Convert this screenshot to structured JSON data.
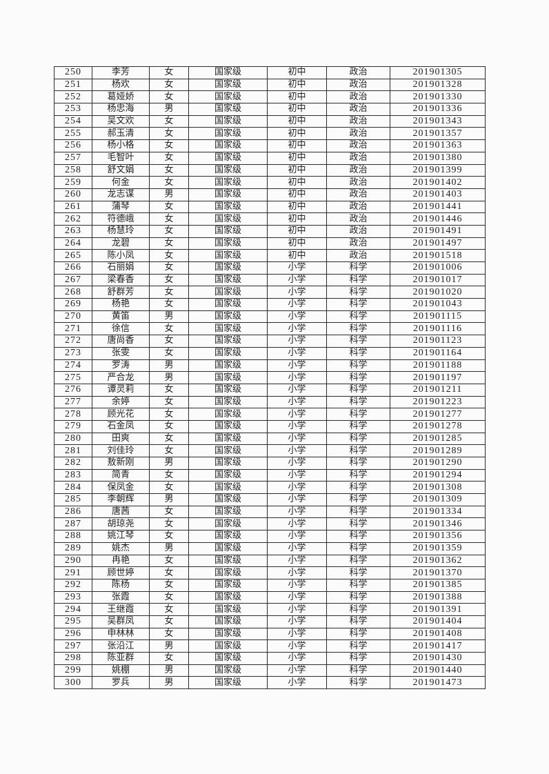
{
  "table": {
    "rows": [
      [
        "250",
        "李芳",
        "女",
        "国家级",
        "初中",
        "政治",
        "201901305"
      ],
      [
        "251",
        "杨欢",
        "女",
        "国家级",
        "初中",
        "政治",
        "201901328"
      ],
      [
        "252",
        "葛娅娇",
        "女",
        "国家级",
        "初中",
        "政治",
        "201901330"
      ],
      [
        "253",
        "杨忠海",
        "男",
        "国家级",
        "初中",
        "政治",
        "201901336"
      ],
      [
        "254",
        "吴文欢",
        "女",
        "国家级",
        "初中",
        "政治",
        "201901343"
      ],
      [
        "255",
        "郝玉清",
        "女",
        "国家级",
        "初中",
        "政治",
        "201901357"
      ],
      [
        "256",
        "杨小格",
        "女",
        "国家级",
        "初中",
        "政治",
        "201901363"
      ],
      [
        "257",
        "毛智叶",
        "女",
        "国家级",
        "初中",
        "政治",
        "201901380"
      ],
      [
        "258",
        "舒文娟",
        "女",
        "国家级",
        "初中",
        "政治",
        "201901399"
      ],
      [
        "259",
        "何金",
        "女",
        "国家级",
        "初中",
        "政治",
        "201901402"
      ],
      [
        "260",
        "龙志谋",
        "男",
        "国家级",
        "初中",
        "政治",
        "201901403"
      ],
      [
        "261",
        "蒲琴",
        "女",
        "国家级",
        "初中",
        "政治",
        "201901441"
      ],
      [
        "262",
        "符德峨",
        "女",
        "国家级",
        "初中",
        "政治",
        "201901446"
      ],
      [
        "263",
        "杨慧玲",
        "女",
        "国家级",
        "初中",
        "政治",
        "201901491"
      ],
      [
        "264",
        "龙碧",
        "女",
        "国家级",
        "初中",
        "政治",
        "201901497"
      ],
      [
        "265",
        "陈小凤",
        "女",
        "国家级",
        "初中",
        "政治",
        "201901518"
      ],
      [
        "266",
        "石丽娟",
        "女",
        "国家级",
        "小学",
        "科学",
        "201901006"
      ],
      [
        "267",
        "梁春香",
        "女",
        "国家级",
        "小学",
        "科学",
        "201901017"
      ],
      [
        "268",
        "舒群芳",
        "女",
        "国家级",
        "小学",
        "科学",
        "201901020"
      ],
      [
        "269",
        "杨艳",
        "女",
        "国家级",
        "小学",
        "科学",
        "201901043"
      ],
      [
        "270",
        "黄笛",
        "男",
        "国家级",
        "小学",
        "科学",
        "201901115"
      ],
      [
        "271",
        "徐信",
        "女",
        "国家级",
        "小学",
        "科学",
        "201901116"
      ],
      [
        "272",
        "唐尚香",
        "女",
        "国家级",
        "小学",
        "科学",
        "201901123"
      ],
      [
        "273",
        "张雯",
        "女",
        "国家级",
        "小学",
        "科学",
        "201901164"
      ],
      [
        "274",
        "罗涛",
        "男",
        "国家级",
        "小学",
        "科学",
        "201901188"
      ],
      [
        "275",
        "严合龙",
        "男",
        "国家级",
        "小学",
        "科学",
        "201901197"
      ],
      [
        "276",
        "谭灵莉",
        "女",
        "国家级",
        "小学",
        "科学",
        "201901211"
      ],
      [
        "277",
        "余婷",
        "女",
        "国家级",
        "小学",
        "科学",
        "201901223"
      ],
      [
        "278",
        "顾光花",
        "女",
        "国家级",
        "小学",
        "科学",
        "201901277"
      ],
      [
        "279",
        "石金凤",
        "女",
        "国家级",
        "小学",
        "科学",
        "201901278"
      ],
      [
        "280",
        "田爽",
        "女",
        "国家级",
        "小学",
        "科学",
        "201901285"
      ],
      [
        "281",
        "刘佳玲",
        "女",
        "国家级",
        "小学",
        "科学",
        "201901289"
      ],
      [
        "282",
        "敖新刚",
        "男",
        "国家级",
        "小学",
        "科学",
        "201901290"
      ],
      [
        "283",
        "简青",
        "女",
        "国家级",
        "小学",
        "科学",
        "201901294"
      ],
      [
        "284",
        "保凤金",
        "女",
        "国家级",
        "小学",
        "科学",
        "201901308"
      ],
      [
        "285",
        "李朝辉",
        "男",
        "国家级",
        "小学",
        "科学",
        "201901309"
      ],
      [
        "286",
        "唐茜",
        "女",
        "国家级",
        "小学",
        "科学",
        "201901334"
      ],
      [
        "287",
        "胡琼尧",
        "女",
        "国家级",
        "小学",
        "科学",
        "201901346"
      ],
      [
        "288",
        "姚江琴",
        "女",
        "国家级",
        "小学",
        "科学",
        "201901356"
      ],
      [
        "289",
        "姚杰",
        "男",
        "国家级",
        "小学",
        "科学",
        "201901359"
      ],
      [
        "290",
        "冉艳",
        "女",
        "国家级",
        "小学",
        "科学",
        "201901362"
      ],
      [
        "291",
        "顾世婷",
        "女",
        "国家级",
        "小学",
        "科学",
        "201901370"
      ],
      [
        "292",
        "陈杨",
        "女",
        "国家级",
        "小学",
        "科学",
        "201901385"
      ],
      [
        "293",
        "张霞",
        "女",
        "国家级",
        "小学",
        "科学",
        "201901388"
      ],
      [
        "294",
        "王继霞",
        "女",
        "国家级",
        "小学",
        "科学",
        "201901391"
      ],
      [
        "295",
        "吴群凤",
        "女",
        "国家级",
        "小学",
        "科学",
        "201901404"
      ],
      [
        "296",
        "申林林",
        "女",
        "国家级",
        "小学",
        "科学",
        "201901408"
      ],
      [
        "297",
        "张沿江",
        "男",
        "国家级",
        "小学",
        "科学",
        "201901417"
      ],
      [
        "298",
        "陈亚群",
        "女",
        "国家级",
        "小学",
        "科学",
        "201901430"
      ],
      [
        "299",
        "姚棚",
        "男",
        "国家级",
        "小学",
        "科学",
        "201901440"
      ],
      [
        "300",
        "罗兵",
        "男",
        "国家级",
        "小学",
        "科学",
        "201901473"
      ]
    ]
  }
}
